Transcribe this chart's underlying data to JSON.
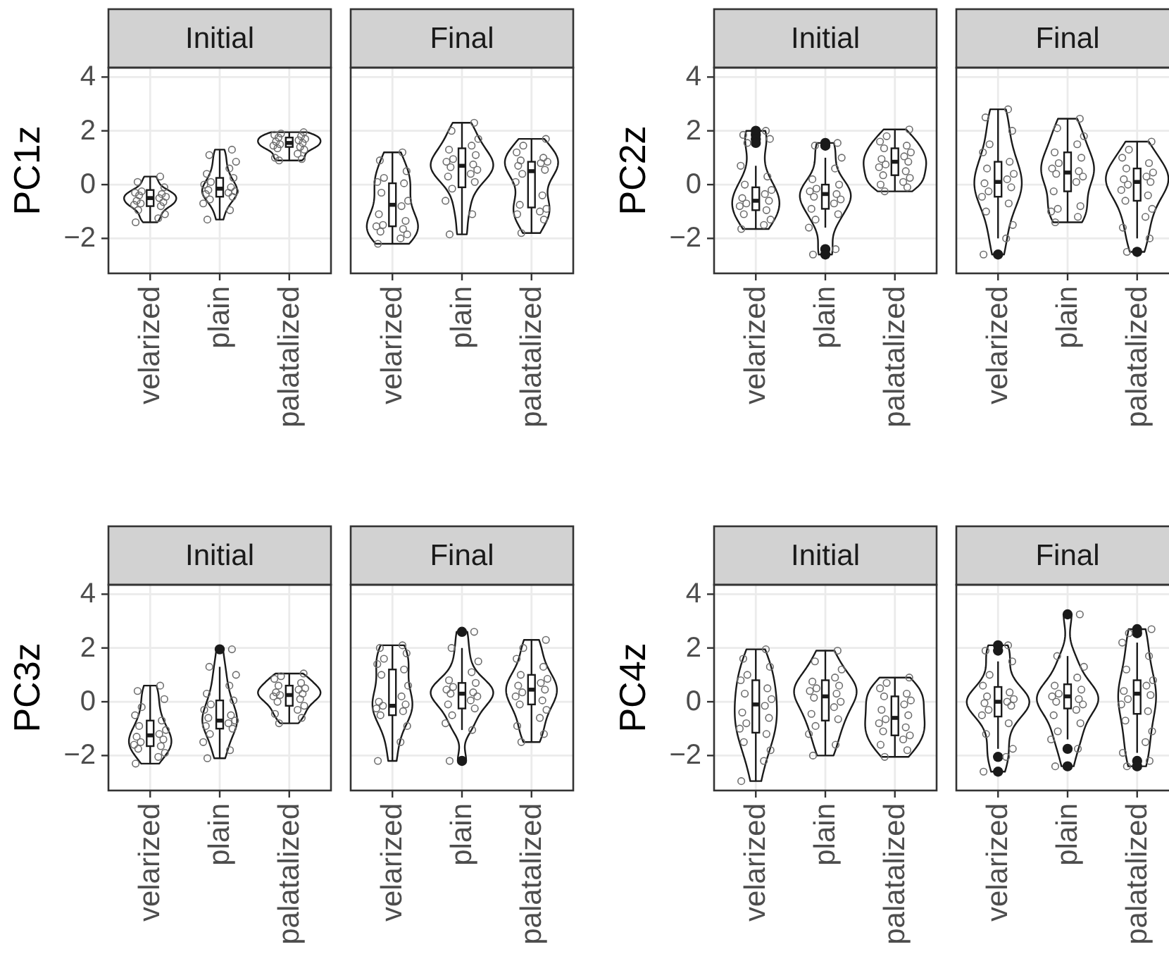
{
  "chart_data": [
    {
      "type": "box",
      "title": "Initial",
      "ylabel": "PC1z",
      "categories": [
        "velarized",
        "plain",
        "palatalized"
      ],
      "ylim": [
        -3.3,
        4.35
      ],
      "yticks": [
        -2,
        0,
        2,
        4
      ],
      "grid": true,
      "color": "#1a1a1a",
      "boxes": [
        {
          "low": -1.4,
          "q1": -0.8,
          "median": -0.5,
          "q3": -0.2,
          "high": 0.3
        },
        {
          "low": -1.3,
          "q1": -0.45,
          "median": -0.15,
          "q3": 0.25,
          "high": 1.3
        },
        {
          "low": 0.9,
          "q1": 1.4,
          "median": 1.55,
          "q3": 1.75,
          "high": 1.95
        }
      ],
      "series": [
        {
          "type": "scatter",
          "color": "#6e6e6e",
          "marker": "circle",
          "x": [
            "velarized",
            "velarized",
            "velarized",
            "velarized",
            "velarized",
            "velarized",
            "velarized",
            "velarized",
            "velarized",
            "velarized",
            "velarized",
            "velarized",
            "velarized",
            "velarized",
            "velarized",
            "velarized",
            "velarized",
            "velarized",
            "plain",
            "plain",
            "plain",
            "plain",
            "plain",
            "plain",
            "plain",
            "plain",
            "plain",
            "plain",
            "plain",
            "plain",
            "plain",
            "plain",
            "plain",
            "plain",
            "plain",
            "plain",
            "palatalized",
            "palatalized",
            "palatalized",
            "palatalized",
            "palatalized",
            "palatalized",
            "palatalized",
            "palatalized",
            "palatalized",
            "palatalized",
            "palatalized",
            "palatalized",
            "palatalized",
            "palatalized",
            "palatalized",
            "palatalized",
            "palatalized",
            "palatalized"
          ],
          "values": [
            0.3,
            0.1,
            -0.1,
            -0.25,
            -0.3,
            -0.35,
            -0.4,
            -0.45,
            -0.5,
            -0.6,
            -0.65,
            -0.7,
            -0.75,
            -0.8,
            -0.95,
            -1.1,
            -1.25,
            -1.4,
            1.3,
            1.1,
            0.85,
            0.6,
            0.4,
            0.25,
            0.1,
            0,
            -0.1,
            -0.2,
            -0.25,
            -0.3,
            -0.35,
            -0.45,
            -0.55,
            -0.7,
            -0.95,
            -1.3,
            1.95,
            1.9,
            1.85,
            1.8,
            1.75,
            1.7,
            1.65,
            1.6,
            1.55,
            1.5,
            1.45,
            1.4,
            1.35,
            1.3,
            1.15,
            1.0,
            0.95,
            0.9
          ]
        }
      ]
    },
    {
      "type": "box",
      "title": "Final",
      "tick_labels": "x",
      "categories": [
        "velarized",
        "plain",
        "palatalized"
      ],
      "ylim": [
        -3.3,
        4.35
      ],
      "yticks": [
        -2,
        0,
        2,
        4
      ],
      "grid": true,
      "color": "#1a1a1a",
      "boxes": [
        {
          "low": -2.2,
          "q1": -1.55,
          "median": -0.75,
          "q3": 0.05,
          "high": 1.2
        },
        {
          "low": -1.85,
          "q1": -0.1,
          "median": 0.7,
          "q3": 1.35,
          "high": 2.3
        },
        {
          "low": -1.8,
          "q1": -0.85,
          "median": 0.5,
          "q3": 0.85,
          "high": 1.7
        }
      ],
      "series": [
        {
          "type": "scatter",
          "color": "#6e6e6e",
          "marker": "circle",
          "x": [
            "velarized",
            "velarized",
            "velarized",
            "velarized",
            "velarized",
            "velarized",
            "velarized",
            "velarized",
            "velarized",
            "velarized",
            "velarized",
            "velarized",
            "velarized",
            "velarized",
            "velarized",
            "velarized",
            "velarized",
            "velarized",
            "plain",
            "plain",
            "plain",
            "plain",
            "plain",
            "plain",
            "plain",
            "plain",
            "plain",
            "plain",
            "plain",
            "plain",
            "plain",
            "plain",
            "plain",
            "plain",
            "plain",
            "plain",
            "palatalized",
            "palatalized",
            "palatalized",
            "palatalized",
            "palatalized",
            "palatalized",
            "palatalized",
            "palatalized",
            "palatalized",
            "palatalized",
            "palatalized",
            "palatalized",
            "palatalized",
            "palatalized",
            "palatalized",
            "palatalized",
            "palatalized",
            "palatalized"
          ],
          "values": [
            1.2,
            0.9,
            0.5,
            0.25,
            0.1,
            0.05,
            -0.3,
            -0.6,
            -0.8,
            -1.1,
            -1.35,
            -1.5,
            -1.55,
            -1.65,
            -1.75,
            -1.85,
            -2.0,
            -2.2,
            2.3,
            2.0,
            1.7,
            1.45,
            1.3,
            1.1,
            0.95,
            0.85,
            0.75,
            0.65,
            0.55,
            0.4,
            0.3,
            0.1,
            -0.15,
            -0.6,
            -1.1,
            -1.85,
            1.7,
            1.45,
            1.2,
            1.0,
            0.9,
            0.85,
            0.8,
            0.7,
            0.55,
            0.4,
            0.1,
            -0.4,
            -0.75,
            -0.9,
            -1.0,
            -1.1,
            -1.3,
            -1.8
          ]
        }
      ]
    },
    {
      "type": "box",
      "title": "Initial",
      "ylabel": "PC2z",
      "categories": [
        "velarized",
        "plain",
        "palatalized"
      ],
      "ylim": [
        -3.3,
        4.35
      ],
      "yticks": [
        -2,
        0,
        2,
        4
      ],
      "grid": true,
      "color": "#1a1a1a",
      "boxes": [
        {
          "low": -1.65,
          "q1": -0.95,
          "median": -0.6,
          "q3": -0.1,
          "high": 0.7,
          "outliers": [
            2.0,
            1.85,
            1.7,
            1.55
          ]
        },
        {
          "low": -1.6,
          "q1": -0.9,
          "median": -0.35,
          "q3": 0.0,
          "high": 1.0,
          "outliers": [
            1.55,
            1.45,
            -2.4,
            -2.6
          ]
        },
        {
          "low": -0.25,
          "q1": 0.35,
          "median": 0.85,
          "q3": 1.35,
          "high": 2.05
        }
      ],
      "series": [
        {
          "type": "scatter",
          "color": "#6e6e6e",
          "marker": "circle",
          "x": [
            "velarized",
            "velarized",
            "velarized",
            "velarized",
            "velarized",
            "velarized",
            "velarized",
            "velarized",
            "velarized",
            "velarized",
            "velarized",
            "velarized",
            "velarized",
            "velarized",
            "velarized",
            "velarized",
            "velarized",
            "velarized",
            "plain",
            "plain",
            "plain",
            "plain",
            "plain",
            "plain",
            "plain",
            "plain",
            "plain",
            "plain",
            "plain",
            "plain",
            "plain",
            "plain",
            "plain",
            "plain",
            "plain",
            "plain",
            "palatalized",
            "palatalized",
            "palatalized",
            "palatalized",
            "palatalized",
            "palatalized",
            "palatalized",
            "palatalized",
            "palatalized",
            "palatalized",
            "palatalized",
            "palatalized",
            "palatalized",
            "palatalized",
            "palatalized",
            "palatalized",
            "palatalized",
            "palatalized"
          ],
          "values": [
            2.0,
            1.85,
            1.7,
            1.55,
            0.7,
            0.3,
            0.0,
            -0.2,
            -0.35,
            -0.5,
            -0.6,
            -0.7,
            -0.8,
            -0.95,
            -1.1,
            -1.3,
            -1.5,
            -1.65,
            1.55,
            1.45,
            1.0,
            0.6,
            0.2,
            0.0,
            -0.15,
            -0.25,
            -0.35,
            -0.45,
            -0.55,
            -0.7,
            -0.9,
            -1.1,
            -1.3,
            -1.6,
            -2.4,
            -2.6,
            2.05,
            1.8,
            1.6,
            1.45,
            1.35,
            1.2,
            1.05,
            0.95,
            0.85,
            0.75,
            0.65,
            0.5,
            0.35,
            0.25,
            0.1,
            0.0,
            -0.1,
            -0.25
          ]
        }
      ]
    },
    {
      "type": "box",
      "title": "Final",
      "tick_labels": "x",
      "categories": [
        "velarized",
        "plain",
        "palatalized"
      ],
      "ylim": [
        -3.3,
        4.35
      ],
      "yticks": [
        -2,
        0,
        2,
        4
      ],
      "grid": true,
      "color": "#1a1a1a",
      "boxes": [
        {
          "low": -2.0,
          "q1": -0.45,
          "median": 0.1,
          "q3": 0.85,
          "high": 2.8,
          "outliers": [
            -2.6
          ]
        },
        {
          "low": -1.4,
          "q1": -0.25,
          "median": 0.45,
          "q3": 1.2,
          "high": 2.45
        },
        {
          "low": -2.0,
          "q1": -0.6,
          "median": 0.1,
          "q3": 0.6,
          "high": 1.6,
          "outliers": [
            -2.5
          ]
        }
      ],
      "series": [
        {
          "type": "scatter",
          "color": "#6e6e6e",
          "marker": "circle",
          "x": [
            "velarized",
            "velarized",
            "velarized",
            "velarized",
            "velarized",
            "velarized",
            "velarized",
            "velarized",
            "velarized",
            "velarized",
            "velarized",
            "velarized",
            "velarized",
            "velarized",
            "velarized",
            "velarized",
            "velarized",
            "velarized",
            "plain",
            "plain",
            "plain",
            "plain",
            "plain",
            "plain",
            "plain",
            "plain",
            "plain",
            "plain",
            "plain",
            "plain",
            "plain",
            "plain",
            "plain",
            "plain",
            "plain",
            "plain",
            "palatalized",
            "palatalized",
            "palatalized",
            "palatalized",
            "palatalized",
            "palatalized",
            "palatalized",
            "palatalized",
            "palatalized",
            "palatalized",
            "palatalized",
            "palatalized",
            "palatalized",
            "palatalized",
            "palatalized",
            "palatalized",
            "palatalized",
            "palatalized"
          ],
          "values": [
            2.8,
            2.5,
            2.0,
            1.5,
            1.2,
            0.85,
            0.6,
            0.4,
            0.2,
            0.05,
            -0.1,
            -0.25,
            -0.45,
            -0.7,
            -1.0,
            -1.5,
            -2.0,
            -2.6,
            2.45,
            2.1,
            1.8,
            1.5,
            1.2,
            1.0,
            0.8,
            0.6,
            0.5,
            0.4,
            0.3,
            0.1,
            -0.25,
            -0.8,
            -0.9,
            -1.0,
            -1.2,
            -1.4,
            1.6,
            1.3,
            1.0,
            0.8,
            0.6,
            0.45,
            0.3,
            0.2,
            0.1,
            0.0,
            -0.2,
            -0.4,
            -0.6,
            -0.9,
            -1.2,
            -1.6,
            -2.0,
            -2.5
          ]
        }
      ]
    },
    {
      "type": "box",
      "title": "Initial",
      "ylabel": "PC3z",
      "categories": [
        "velarized",
        "plain",
        "palatalized"
      ],
      "ylim": [
        -3.3,
        4.35
      ],
      "yticks": [
        -2,
        0,
        2,
        4
      ],
      "grid": true,
      "color": "#1a1a1a",
      "boxes": [
        {
          "low": -2.3,
          "q1": -1.65,
          "median": -1.25,
          "q3": -0.7,
          "high": 0.6
        },
        {
          "low": -2.1,
          "q1": -1.0,
          "median": -0.7,
          "q3": 0.05,
          "high": 1.3,
          "outliers": [
            1.95
          ]
        },
        {
          "low": -0.8,
          "q1": -0.15,
          "median": 0.25,
          "q3": 0.6,
          "high": 1.05
        }
      ],
      "series": [
        {
          "type": "scatter",
          "color": "#6e6e6e",
          "marker": "circle",
          "x": [
            "velarized",
            "velarized",
            "velarized",
            "velarized",
            "velarized",
            "velarized",
            "velarized",
            "velarized",
            "velarized",
            "velarized",
            "velarized",
            "velarized",
            "velarized",
            "velarized",
            "velarized",
            "velarized",
            "velarized",
            "velarized",
            "plain",
            "plain",
            "plain",
            "plain",
            "plain",
            "plain",
            "plain",
            "plain",
            "plain",
            "plain",
            "plain",
            "plain",
            "plain",
            "plain",
            "plain",
            "plain",
            "plain",
            "plain",
            "palatalized",
            "palatalized",
            "palatalized",
            "palatalized",
            "palatalized",
            "palatalized",
            "palatalized",
            "palatalized",
            "palatalized",
            "palatalized",
            "palatalized",
            "palatalized",
            "palatalized",
            "palatalized",
            "palatalized",
            "palatalized",
            "palatalized",
            "palatalized"
          ],
          "values": [
            0.6,
            0.4,
            0.1,
            -0.2,
            -0.5,
            -0.7,
            -0.9,
            -1.05,
            -1.2,
            -1.3,
            -1.4,
            -1.5,
            -1.6,
            -1.65,
            -1.75,
            -1.9,
            -2.05,
            -2.3,
            1.95,
            1.3,
            1.0,
            0.6,
            0.3,
            0.05,
            -0.1,
            -0.3,
            -0.5,
            -0.6,
            -0.7,
            -0.8,
            -0.9,
            -1.0,
            -1.2,
            -1.5,
            -1.8,
            -2.1,
            1.05,
            0.95,
            0.85,
            0.7,
            0.6,
            0.5,
            0.45,
            0.35,
            0.3,
            0.25,
            0.2,
            0.1,
            0.0,
            -0.15,
            -0.3,
            -0.45,
            -0.6,
            -0.8
          ]
        }
      ]
    },
    {
      "type": "box",
      "title": "Final",
      "tick_labels": "x",
      "categories": [
        "velarized",
        "plain",
        "palatalized"
      ],
      "ylim": [
        -3.3,
        4.35
      ],
      "yticks": [
        -2,
        0,
        2,
        4
      ],
      "grid": true,
      "color": "#1a1a1a",
      "boxes": [
        {
          "low": -2.2,
          "q1": -0.5,
          "median": -0.15,
          "q3": 1.2,
          "high": 2.1
        },
        {
          "low": -1.05,
          "q1": -0.25,
          "median": 0.3,
          "q3": 0.7,
          "high": 2.0,
          "outliers": [
            2.6,
            -2.2
          ]
        },
        {
          "low": -1.5,
          "q1": -0.1,
          "median": 0.45,
          "q3": 1.0,
          "high": 2.3
        }
      ],
      "series": [
        {
          "type": "scatter",
          "color": "#6e6e6e",
          "marker": "circle",
          "x": [
            "velarized",
            "velarized",
            "velarized",
            "velarized",
            "velarized",
            "velarized",
            "velarized",
            "velarized",
            "velarized",
            "velarized",
            "velarized",
            "velarized",
            "velarized",
            "velarized",
            "velarized",
            "velarized",
            "velarized",
            "velarized",
            "plain",
            "plain",
            "plain",
            "plain",
            "plain",
            "plain",
            "plain",
            "plain",
            "plain",
            "plain",
            "plain",
            "plain",
            "plain",
            "plain",
            "plain",
            "plain",
            "plain",
            "plain",
            "palatalized",
            "palatalized",
            "palatalized",
            "palatalized",
            "palatalized",
            "palatalized",
            "palatalized",
            "palatalized",
            "palatalized",
            "palatalized",
            "palatalized",
            "palatalized",
            "palatalized",
            "palatalized",
            "palatalized",
            "palatalized",
            "palatalized",
            "palatalized"
          ],
          "values": [
            2.1,
            2.0,
            1.8,
            1.6,
            1.4,
            1.2,
            1.0,
            0.6,
            0.2,
            0.0,
            -0.1,
            -0.15,
            -0.25,
            -0.35,
            -0.5,
            -0.9,
            -1.5,
            -2.2,
            2.6,
            2.0,
            1.5,
            1.1,
            0.8,
            0.7,
            0.55,
            0.45,
            0.35,
            0.3,
            0.2,
            0.05,
            -0.1,
            -0.25,
            -0.5,
            -0.8,
            -1.05,
            -2.2,
            2.3,
            2.0,
            1.6,
            1.3,
            1.0,
            0.85,
            0.7,
            0.6,
            0.45,
            0.35,
            0.2,
            0.05,
            -0.1,
            -0.3,
            -0.6,
            -0.9,
            -1.2,
            -1.5
          ]
        }
      ]
    },
    {
      "type": "box",
      "title": "Initial",
      "ylabel": "PC4z",
      "categories": [
        "velarized",
        "plain",
        "palatalized"
      ],
      "ylim": [
        -3.3,
        4.35
      ],
      "yticks": [
        -2,
        0,
        2,
        4
      ],
      "grid": true,
      "color": "#1a1a1a",
      "boxes": [
        {
          "low": -2.95,
          "q1": -1.15,
          "median": -0.1,
          "q3": 0.8,
          "high": 1.95
        },
        {
          "low": -2.0,
          "q1": -0.7,
          "median": 0.2,
          "q3": 0.8,
          "high": 1.9
        },
        {
          "low": -2.05,
          "q1": -1.25,
          "median": -0.6,
          "q3": 0.2,
          "high": 0.9
        }
      ],
      "series": [
        {
          "type": "scatter",
          "color": "#6e6e6e",
          "marker": "circle",
          "x": [
            "velarized",
            "velarized",
            "velarized",
            "velarized",
            "velarized",
            "velarized",
            "velarized",
            "velarized",
            "velarized",
            "velarized",
            "velarized",
            "velarized",
            "velarized",
            "velarized",
            "velarized",
            "velarized",
            "velarized",
            "velarized",
            "plain",
            "plain",
            "plain",
            "plain",
            "plain",
            "plain",
            "plain",
            "plain",
            "plain",
            "plain",
            "plain",
            "plain",
            "plain",
            "plain",
            "plain",
            "plain",
            "plain",
            "plain",
            "palatalized",
            "palatalized",
            "palatalized",
            "palatalized",
            "palatalized",
            "palatalized",
            "palatalized",
            "palatalized",
            "palatalized",
            "palatalized",
            "palatalized",
            "palatalized",
            "palatalized",
            "palatalized",
            "palatalized",
            "palatalized",
            "palatalized",
            "palatalized"
          ],
          "values": [
            1.95,
            1.6,
            1.3,
            1.0,
            0.8,
            0.5,
            0.3,
            0.1,
            -0.15,
            -0.4,
            -0.6,
            -0.8,
            -1.0,
            -1.2,
            -1.5,
            -1.8,
            -2.2,
            -2.95,
            1.9,
            1.5,
            1.2,
            0.9,
            0.75,
            0.6,
            0.5,
            0.4,
            0.3,
            0.15,
            0.0,
            -0.2,
            -0.45,
            -0.65,
            -0.9,
            -1.2,
            -1.6,
            -2.0,
            0.9,
            0.7,
            0.5,
            0.3,
            0.2,
            0.05,
            -0.1,
            -0.3,
            -0.5,
            -0.65,
            -0.8,
            -0.95,
            -1.1,
            -1.25,
            -1.4,
            -1.6,
            -1.8,
            -2.05
          ]
        }
      ]
    },
    {
      "type": "box",
      "title": "Final",
      "tick_labels": "x",
      "categories": [
        "velarized",
        "plain",
        "palatalized"
      ],
      "ylim": [
        -3.3,
        4.35
      ],
      "yticks": [
        -2,
        0,
        2,
        4
      ],
      "grid": true,
      "color": "#1a1a1a",
      "boxes": [
        {
          "low": -1.75,
          "q1": -0.55,
          "median": 0.0,
          "q3": 0.55,
          "high": 1.5,
          "outliers": [
            2.1,
            1.9,
            -2.05,
            -2.6
          ]
        },
        {
          "low": -1.4,
          "q1": -0.25,
          "median": 0.2,
          "q3": 0.65,
          "high": 1.7,
          "outliers": [
            3.25,
            -1.75,
            -2.4
          ]
        },
        {
          "low": -1.9,
          "q1": -0.45,
          "median": 0.3,
          "q3": 0.8,
          "high": 2.2,
          "outliers": [
            2.7,
            2.55,
            -2.2,
            -2.4
          ]
        }
      ],
      "series": [
        {
          "type": "scatter",
          "color": "#6e6e6e",
          "marker": "circle",
          "x": [
            "velarized",
            "velarized",
            "velarized",
            "velarized",
            "velarized",
            "velarized",
            "velarized",
            "velarized",
            "velarized",
            "velarized",
            "velarized",
            "velarized",
            "velarized",
            "velarized",
            "velarized",
            "velarized",
            "velarized",
            "velarized",
            "plain",
            "plain",
            "plain",
            "plain",
            "plain",
            "plain",
            "plain",
            "plain",
            "plain",
            "plain",
            "plain",
            "plain",
            "plain",
            "plain",
            "plain",
            "plain",
            "plain",
            "plain",
            "palatalized",
            "palatalized",
            "palatalized",
            "palatalized",
            "palatalized",
            "palatalized",
            "palatalized",
            "palatalized",
            "palatalized",
            "palatalized",
            "palatalized",
            "palatalized",
            "palatalized",
            "palatalized",
            "palatalized",
            "palatalized",
            "palatalized",
            "palatalized"
          ],
          "values": [
            2.1,
            1.9,
            1.5,
            1.0,
            0.6,
            0.35,
            0.2,
            0.1,
            0.0,
            -0.05,
            -0.15,
            -0.3,
            -0.5,
            -0.8,
            -1.2,
            -1.75,
            -2.05,
            -2.6,
            3.25,
            1.7,
            1.3,
            0.9,
            0.6,
            0.45,
            0.3,
            0.2,
            0.1,
            0.0,
            -0.1,
            -0.3,
            -0.5,
            -0.8,
            -1.1,
            -1.4,
            -1.75,
            -2.4,
            2.7,
            2.55,
            2.2,
            1.7,
            1.2,
            0.8,
            0.6,
            0.4,
            0.25,
            0.1,
            -0.1,
            -0.35,
            -0.7,
            -1.1,
            -1.5,
            -1.9,
            -2.2,
            -2.4
          ]
        }
      ]
    }
  ]
}
